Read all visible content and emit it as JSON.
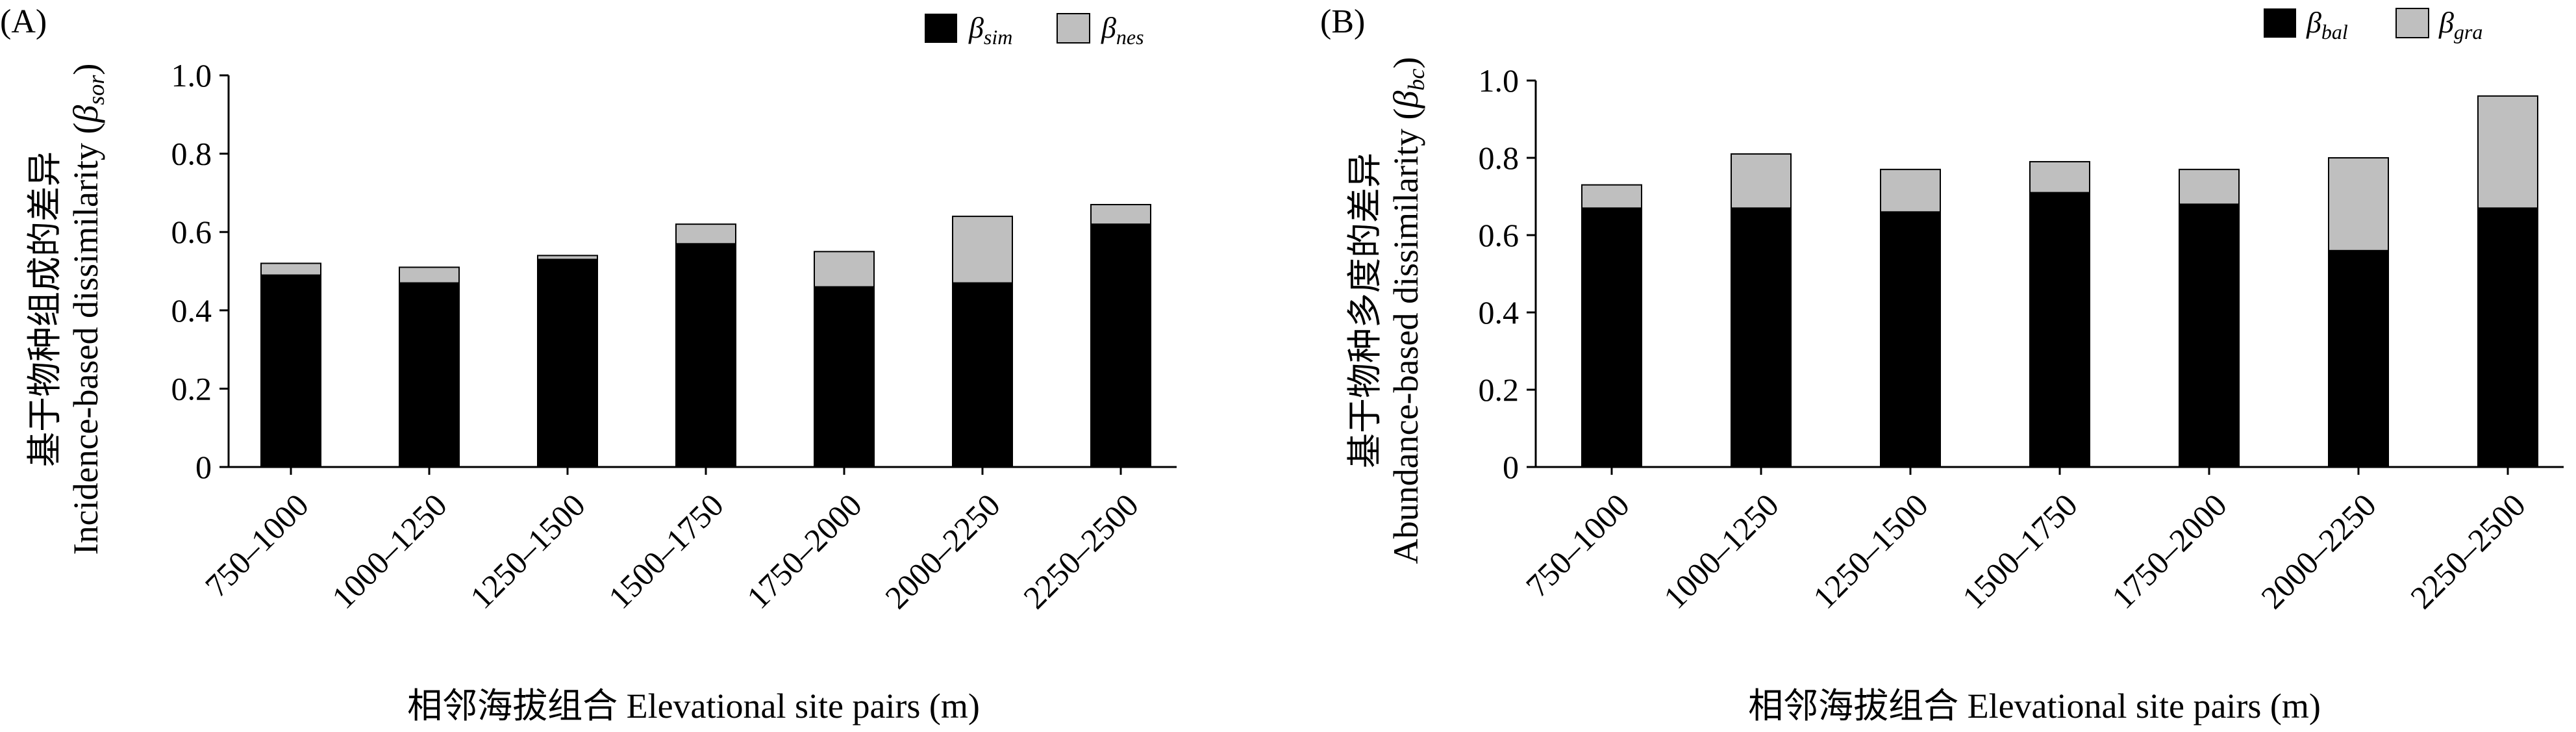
{
  "chart_data": [
    {
      "type": "bar",
      "stacked": true,
      "panel_label": "(A)",
      "categories": [
        "750–1000",
        "1000–1250",
        "1250–1500",
        "1500–1750",
        "1750–2000",
        "2000–2250",
        "2250–2500"
      ],
      "series": [
        {
          "name": "β_sim",
          "symbol": "β",
          "sub": "sim",
          "color": "#000000",
          "values": [
            0.49,
            0.47,
            0.53,
            0.57,
            0.46,
            0.47,
            0.62
          ]
        },
        {
          "name": "β_nes",
          "symbol": "β",
          "sub": "nes",
          "color": "#bfbfbf",
          "values": [
            0.03,
            0.04,
            0.01,
            0.05,
            0.09,
            0.17,
            0.05
          ]
        }
      ],
      "ylim": [
        0,
        1.0
      ],
      "yticks": [
        "0",
        "0.2",
        "0.4",
        "0.6",
        "0.8",
        "1.0"
      ],
      "ylabel_cn": "基于物种组成的差异",
      "ylabel_en": "Incidence-based dissimilarity (",
      "ylabel_beta": "β",
      "ylabel_sub": "sor",
      "ylabel_close": ")",
      "xlabel": "相邻海拔组合 Elevational site pairs (m)",
      "legend_position": "top-right",
      "grid": false
    },
    {
      "type": "bar",
      "stacked": true,
      "panel_label": "(B)",
      "categories": [
        "750–1000",
        "1000–1250",
        "1250–1500",
        "1500–1750",
        "1750–2000",
        "2000–2250",
        "2250–2500"
      ],
      "series": [
        {
          "name": "β_bal",
          "symbol": "β",
          "sub": "bal",
          "color": "#000000",
          "values": [
            0.67,
            0.67,
            0.66,
            0.71,
            0.68,
            0.56,
            0.67
          ]
        },
        {
          "name": "β_gra",
          "symbol": "β",
          "sub": "gra",
          "color": "#bfbfbf",
          "values": [
            0.06,
            0.14,
            0.11,
            0.08,
            0.09,
            0.24,
            0.29
          ]
        }
      ],
      "ylim": [
        0,
        1.0
      ],
      "yticks": [
        "0",
        "0.2",
        "0.4",
        "0.6",
        "0.8",
        "1.0"
      ],
      "ylabel_cn": "基于物种多度的差异",
      "ylabel_en": "Abundance-based dissimilarity (",
      "ylabel_beta": "β",
      "ylabel_sub": "bc",
      "ylabel_close": ")",
      "xlabel": "相邻海拔组合 Elevational site pairs (m)",
      "legend_position": "top-right",
      "grid": false
    }
  ]
}
